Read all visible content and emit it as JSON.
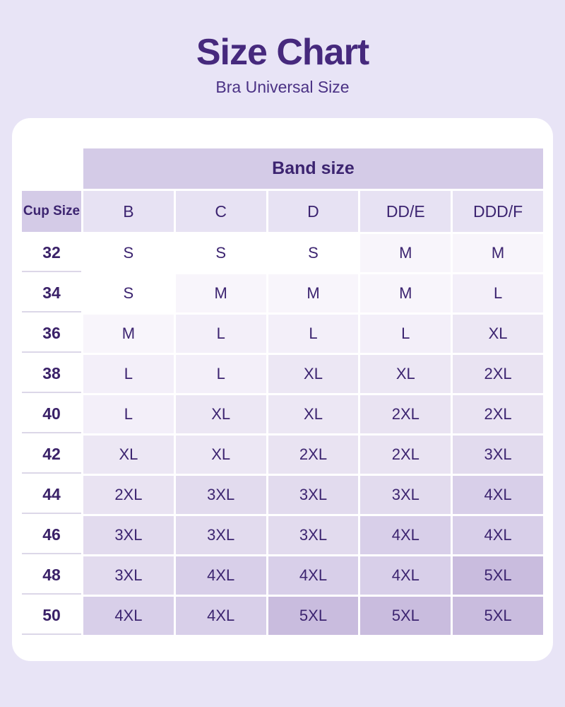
{
  "chart_data": {
    "type": "table",
    "title": "Size Chart",
    "subtitle": "Bra Universal Size",
    "band_header": "Band size",
    "corner_label": "Cup Size",
    "columns": [
      "B",
      "C",
      "D",
      "DD/E",
      "DDD/F"
    ],
    "rows": [
      {
        "cup": "32",
        "values": [
          "S",
          "S",
          "S",
          "M",
          "M"
        ]
      },
      {
        "cup": "34",
        "values": [
          "S",
          "M",
          "M",
          "M",
          "L"
        ]
      },
      {
        "cup": "36",
        "values": [
          "M",
          "L",
          "L",
          "L",
          "XL"
        ]
      },
      {
        "cup": "38",
        "values": [
          "L",
          "L",
          "XL",
          "XL",
          "2XL"
        ]
      },
      {
        "cup": "40",
        "values": [
          "L",
          "XL",
          "XL",
          "2XL",
          "2XL"
        ]
      },
      {
        "cup": "42",
        "values": [
          "XL",
          "XL",
          "2XL",
          "2XL",
          "3XL"
        ]
      },
      {
        "cup": "44",
        "values": [
          "2XL",
          "3XL",
          "3XL",
          "3XL",
          "4XL"
        ]
      },
      {
        "cup": "46",
        "values": [
          "3XL",
          "3XL",
          "3XL",
          "4XL",
          "4XL"
        ]
      },
      {
        "cup": "48",
        "values": [
          "3XL",
          "4XL",
          "4XL",
          "4XL",
          "5XL"
        ]
      },
      {
        "cup": "50",
        "values": [
          "4XL",
          "4XL",
          "5XL",
          "5XL",
          "5XL"
        ]
      }
    ],
    "legend_note": "cell shading darkens with larger sizes"
  },
  "style": {
    "colors": {
      "page_bg": "#E8E4F6",
      "card_bg": "#FFFFFF",
      "band_header_bg": "#D4CBE7",
      "corner_header_bg": "#D4CBE7",
      "column_header_bg": "#E7E2F3",
      "title_text": "#46297D",
      "subtitle_text": "#4A3184",
      "cell_text": "#3C2470",
      "row_number_text": "#3A2168",
      "row_separator_line": "#DCD7E8"
    },
    "size_colors": {
      "S": "#FFFFFF",
      "M": "#F8F5FB",
      "L": "#F3EFF9",
      "XL": "#ECE7F4",
      "2XL": "#E9E3F2",
      "3XL": "#E2DBEE",
      "4XL": "#D8CFE9",
      "5XL": "#C9BCDE"
    }
  }
}
